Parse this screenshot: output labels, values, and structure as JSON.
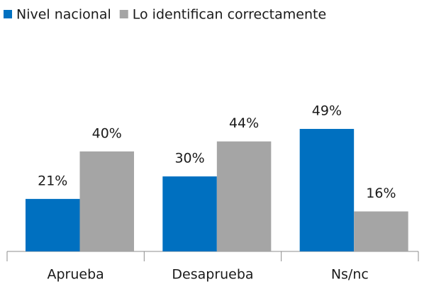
{
  "chart_data": {
    "type": "bar",
    "categories": [
      "Aprueba",
      "Desaprueba",
      "Ns/nc"
    ],
    "series": [
      {
        "name": "Nivel nacional",
        "color": "#0070c0",
        "values": [
          21,
          30,
          49
        ],
        "value_labels": [
          "21%",
          "30%",
          "49%"
        ]
      },
      {
        "name": "Lo identifican correctamente",
        "color": "#a5a5a5",
        "values": [
          40,
          44,
          16
        ],
        "value_labels": [
          "40%",
          "44%",
          "16%"
        ]
      }
    ]
  }
}
